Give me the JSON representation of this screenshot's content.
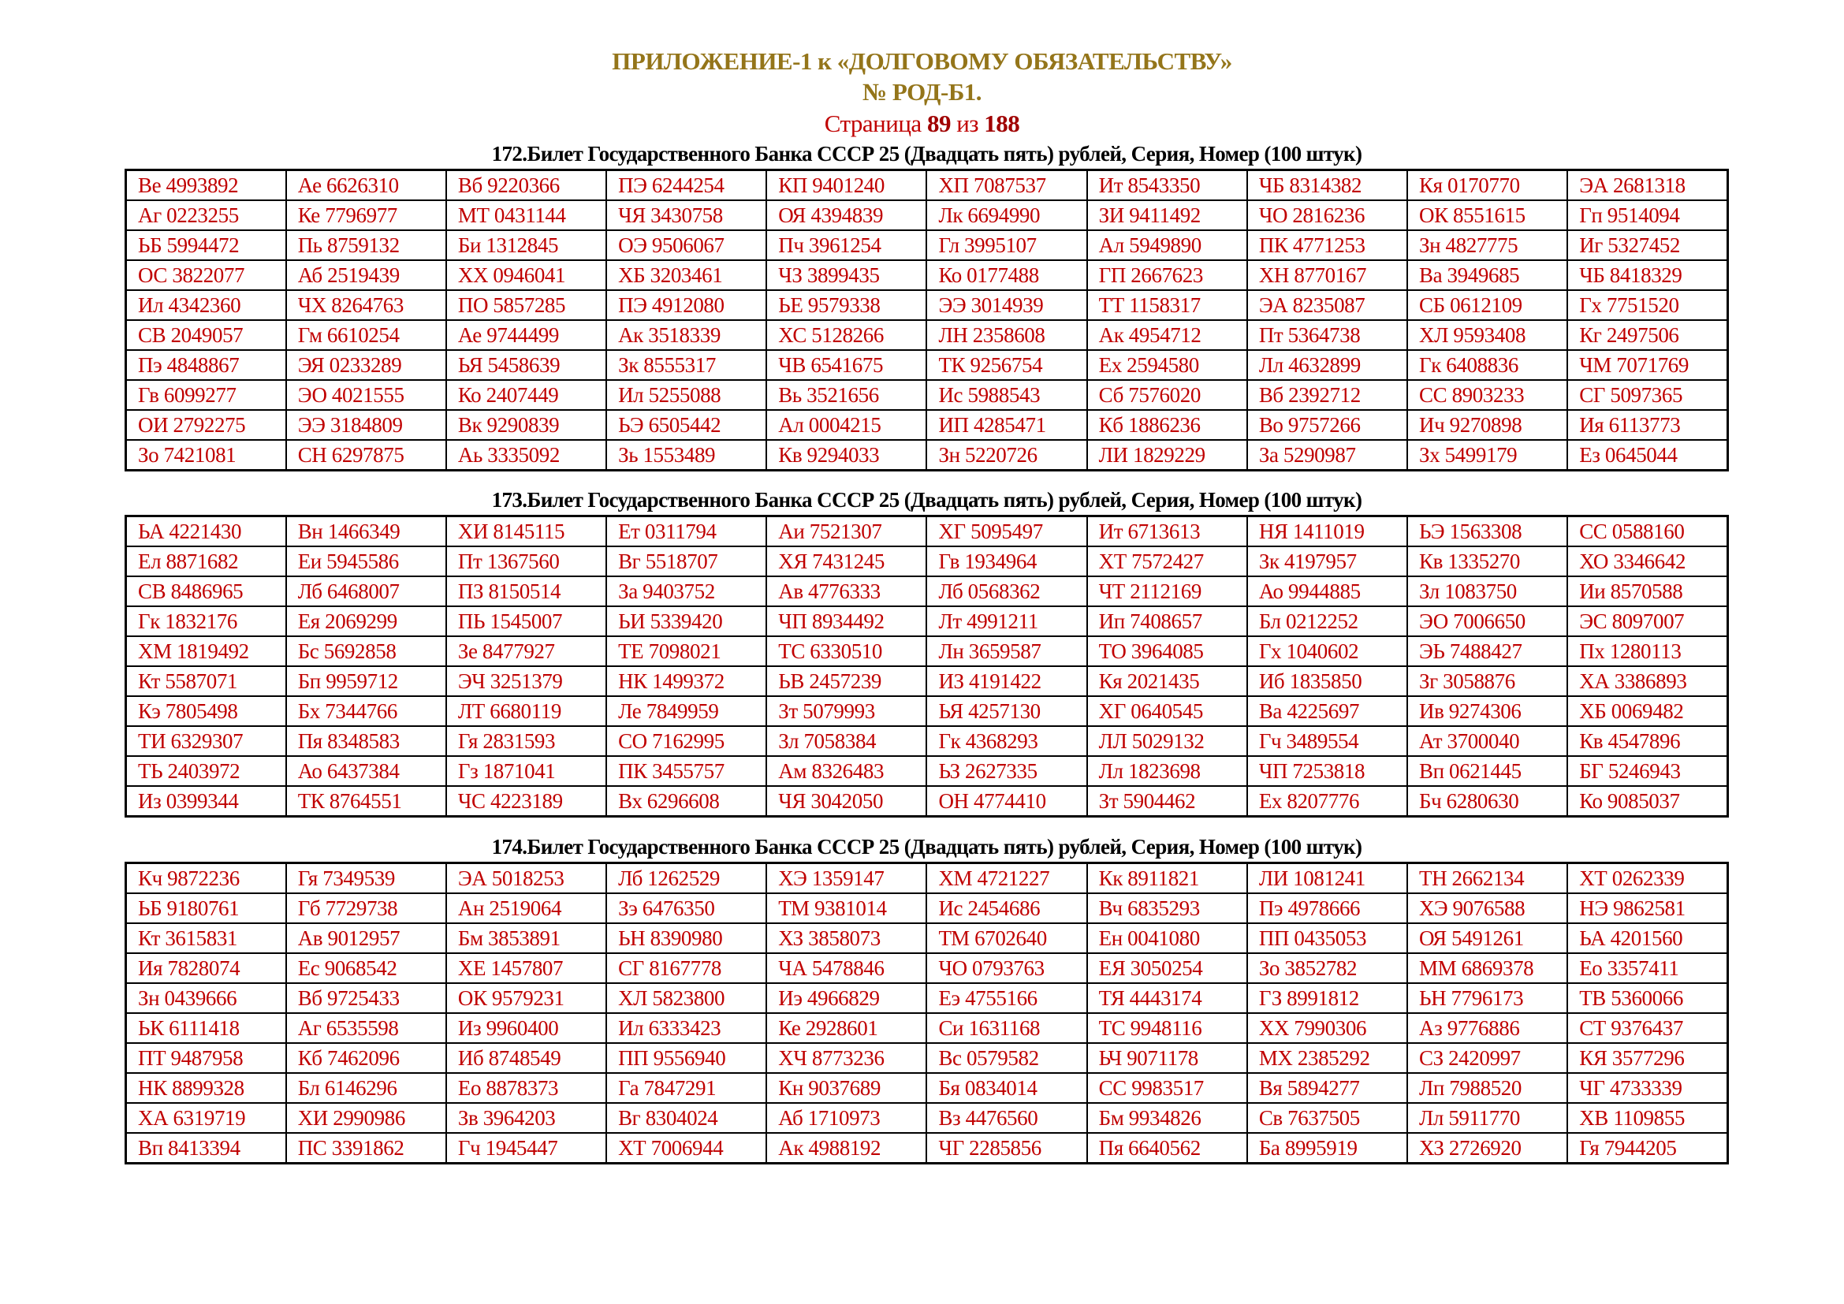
{
  "header": {
    "title": "ПРИЛОЖЕНИЕ-1 к «ДОЛГОВОМУ ОБЯЗАТЕЛЬСТВУ»",
    "doc_number": "№ РОД-Б1.",
    "page_label": "Страница",
    "page_current": "89",
    "page_of": "из",
    "page_total": "188"
  },
  "colors": {
    "title": "#94751a",
    "cell_text": "#c00000",
    "page_text": "#c00000"
  },
  "sections": [
    {
      "heading": "172.Билет Государственного Банка СССР 25 (Двадцать пять) рублей, Серия, Номер (100 штук)",
      "rows": [
        [
          "Ве 4993892",
          "Ае 6626310",
          "Вб 9220366",
          "ПЭ 6244254",
          "КП 9401240",
          "ХП 7087537",
          "Ит 8543350",
          "ЧБ 8314382",
          "Кя 0170770",
          "ЭА 2681318"
        ],
        [
          "Аг 0223255",
          "Ке 7796977",
          "МТ 0431144",
          "ЧЯ 3430758",
          "ОЯ 4394839",
          "Лк 6694990",
          "ЗИ 9411492",
          "ЧО 2816236",
          "ОК 8551615",
          "Гп 9514094"
        ],
        [
          "ЬБ 5994472",
          "Пь 8759132",
          "Би 1312845",
          "ОЭ 9506067",
          "Пч 3961254",
          "Гл 3995107",
          "Ал 5949890",
          "ПК 4771253",
          "Зн 4827775",
          "Иг 5327452"
        ],
        [
          "ОС 3822077",
          "Аб 2519439",
          "ХХ 0946041",
          "ХБ 3203461",
          "ЧЗ 3899435",
          "Ко 0177488",
          "ГП 2667623",
          "ХН 8770167",
          "Ва 3949685",
          "ЧБ 8418329"
        ],
        [
          "Ил 4342360",
          "ЧХ 8264763",
          "ПО 5857285",
          "ПЭ 4912080",
          "ЬЕ 9579338",
          "ЭЭ 3014939",
          "ТТ 1158317",
          "ЭА 8235087",
          "СБ 0612109",
          "Гх 7751520"
        ],
        [
          "СВ 2049057",
          "Гм 6610254",
          "Ае 9744499",
          "Ак 3518339",
          "ХС 5128266",
          "ЛН 2358608",
          "Ак 4954712",
          "Пт 5364738",
          "ХЛ 9593408",
          "Кг 2497506"
        ],
        [
          "Пэ 4848867",
          "ЭЯ 0233289",
          "ЬЯ 5458639",
          "Зк 8555317",
          "ЧВ 6541675",
          "ТК 9256754",
          "Ех 2594580",
          "Лл 4632899",
          "Гк 6408836",
          "ЧМ 7071769"
        ],
        [
          "Гв 6099277",
          "ЭО 4021555",
          "Ко 2407449",
          "Ил 5255088",
          "Вь 3521656",
          "Ис 5988543",
          "Сб 7576020",
          "Вб 2392712",
          "СС 8903233",
          "СГ 5097365"
        ],
        [
          "ОИ 2792275",
          "ЭЭ 3184809",
          "Вк 9290839",
          "ЬЭ 6505442",
          "Ал 0004215",
          "ИП 4285471",
          "Кб 1886236",
          "Во 9757266",
          "Ич 9270898",
          "Ия 6113773"
        ],
        [
          "Зо 7421081",
          "СН 6297875",
          "Аь 3335092",
          "Зь 1553489",
          "Кв 9294033",
          "Зн 5220726",
          "ЛИ 1829229",
          "За 5290987",
          "Зх 5499179",
          "Ез 0645044"
        ]
      ]
    },
    {
      "heading": "173.Билет Государственного Банка СССР 25 (Двадцать пять) рублей, Серия, Номер (100 штук)",
      "rows": [
        [
          "ЬА 4221430",
          "Вн 1466349",
          "ХИ 8145115",
          "Ет 0311794",
          "Аи 7521307",
          "ХГ 5095497",
          "Ит 6713613",
          "НЯ 1411019",
          "ЬЭ 1563308",
          "СС 0588160"
        ],
        [
          "Ел 8871682",
          "Еи 5945586",
          "Пт 1367560",
          "Вг 5518707",
          "ХЯ 7431245",
          "Гв 1934964",
          "ХТ 7572427",
          "Зк 4197957",
          "Кв 1335270",
          "ХО 3346642"
        ],
        [
          "СВ 8486965",
          "Лб 6468007",
          "ПЗ 8150514",
          "За 9403752",
          "Ав 4776333",
          "Лб 0568362",
          "ЧТ 2112169",
          "Ао 9944885",
          "Зл 1083750",
          "Ии 8570588"
        ],
        [
          "Гк 1832176",
          "Ея 2069299",
          "ПЬ 1545007",
          "ЬИ 5339420",
          "ЧП 8934492",
          "Лт 4991211",
          "Ип 7408657",
          "Бл 0212252",
          "ЭО 7006650",
          "ЭС 8097007"
        ],
        [
          "ХМ 1819492",
          "Бс 5692858",
          "Зе 8477927",
          "ТЕ 7098021",
          "ТС 6330510",
          "Лн 3659587",
          "ТО 3964085",
          "Гх 1040602",
          "ЭЬ 7488427",
          "Пх 1280113"
        ],
        [
          "Кт 5587071",
          "Бп 9959712",
          "ЭЧ 3251379",
          "НК 1499372",
          "ЬВ 2457239",
          "ИЗ 4191422",
          "Кя 2021435",
          "Иб 1835850",
          "Зг 3058876",
          "ХА 3386893"
        ],
        [
          "Кэ 7805498",
          "Бх 7344766",
          "ЛТ 6680119",
          "Ле 7849959",
          "Зт 5079993",
          "ЬЯ 4257130",
          "ХГ 0640545",
          "Ва 4225697",
          "Ив 9274306",
          "ХБ 0069482"
        ],
        [
          "ТИ 6329307",
          "Пя 8348583",
          "Гя 2831593",
          "СО 7162995",
          "Зл 7058384",
          "Гк 4368293",
          "ЛЛ 5029132",
          "Гч 3489554",
          "Ат 3700040",
          "Кв 4547896"
        ],
        [
          "ТЬ 2403972",
          "Ао 6437384",
          "Гз 1871041",
          "ПК 3455757",
          "Ам 8326483",
          "ЬЗ 2627335",
          "Лл 1823698",
          "ЧП 7253818",
          "Вп 0621445",
          "БГ 5246943"
        ],
        [
          "Из 0399344",
          "ТК 8764551",
          "ЧС 4223189",
          "Вх 6296608",
          "ЧЯ 3042050",
          "ОН 4774410",
          "Зт 5904462",
          "Ех 8207776",
          "Бч 6280630",
          "Ко 9085037"
        ]
      ]
    },
    {
      "heading": "174.Билет Государственного Банка СССР 25 (Двадцать пять) рублей, Серия, Номер (100 штук)",
      "rows": [
        [
          "Кч 9872236",
          "Гя 7349539",
          "ЭА 5018253",
          "Лб 1262529",
          "ХЭ 1359147",
          "ХМ 4721227",
          "Кк 8911821",
          "ЛИ 1081241",
          "ТН 2662134",
          "ХТ 0262339"
        ],
        [
          "ЬБ 9180761",
          "Гб 7729738",
          "Ан 2519064",
          "Зэ 6476350",
          "ТМ 9381014",
          "Ис 2454686",
          "Вч 6835293",
          "Пэ 4978666",
          "ХЭ 9076588",
          "НЭ 9862581"
        ],
        [
          "Кт 3615831",
          "Ав 9012957",
          "Бм 3853891",
          "ЬН 8390980",
          "ХЗ 3858073",
          "ТМ 6702640",
          "Ен 0041080",
          "ПП 0435053",
          "ОЯ 5491261",
          "ЬА 4201560"
        ],
        [
          "Ия 7828074",
          "Ес 9068542",
          "ХЕ 1457807",
          "СГ 8167778",
          "ЧА 5478846",
          "ЧО 0793763",
          "ЕЯ 3050254",
          "Зо 3852782",
          "ММ 6869378",
          "Ео 3357411"
        ],
        [
          "Зн 0439666",
          "Вб 9725433",
          "ОК 9579231",
          "ХЛ 5823800",
          "Иэ 4966829",
          "Еэ 4755166",
          "ТЯ 4443174",
          "ГЗ 8991812",
          "ЬН 7796173",
          "ТВ 5360066"
        ],
        [
          "ЬК 6111418",
          "Аг 6535598",
          "Из 9960400",
          "Ил 6333423",
          "Ке 2928601",
          "Си 1631168",
          "ТС 9948116",
          "ХХ 7990306",
          "Аз 9776886",
          "СТ 9376437"
        ],
        [
          "ПТ 9487958",
          "Кб 7462096",
          "Иб 8748549",
          "ПП 9556940",
          "ХЧ 8773236",
          "Вс 0579582",
          "ЬЧ 9071178",
          "МХ 2385292",
          "СЗ 2420997",
          "КЯ 3577296"
        ],
        [
          "НК 8899328",
          "Бл 6146296",
          "Ео 8878373",
          "Га 7847291",
          "Кн 9037689",
          "Бя 0834014",
          "СС 9983517",
          "Вя 5894277",
          "Лп 7988520",
          "ЧГ 4733339"
        ],
        [
          "ХА 6319719",
          "ХИ 2990986",
          "Зв 3964203",
          "Вг 8304024",
          "Аб 1710973",
          "Вз 4476560",
          "Бм 9934826",
          "Св 7637505",
          "Лл 5911770",
          "ХВ 1109855"
        ],
        [
          "Вп 8413394",
          "ПС 3391862",
          "Гч 1945447",
          "ХТ 7006944",
          "Ак 4988192",
          "ЧГ 2285856",
          "Пя 6640562",
          "Ба 8995919",
          "ХЗ 2726920",
          "Гя 7944205"
        ]
      ]
    }
  ]
}
